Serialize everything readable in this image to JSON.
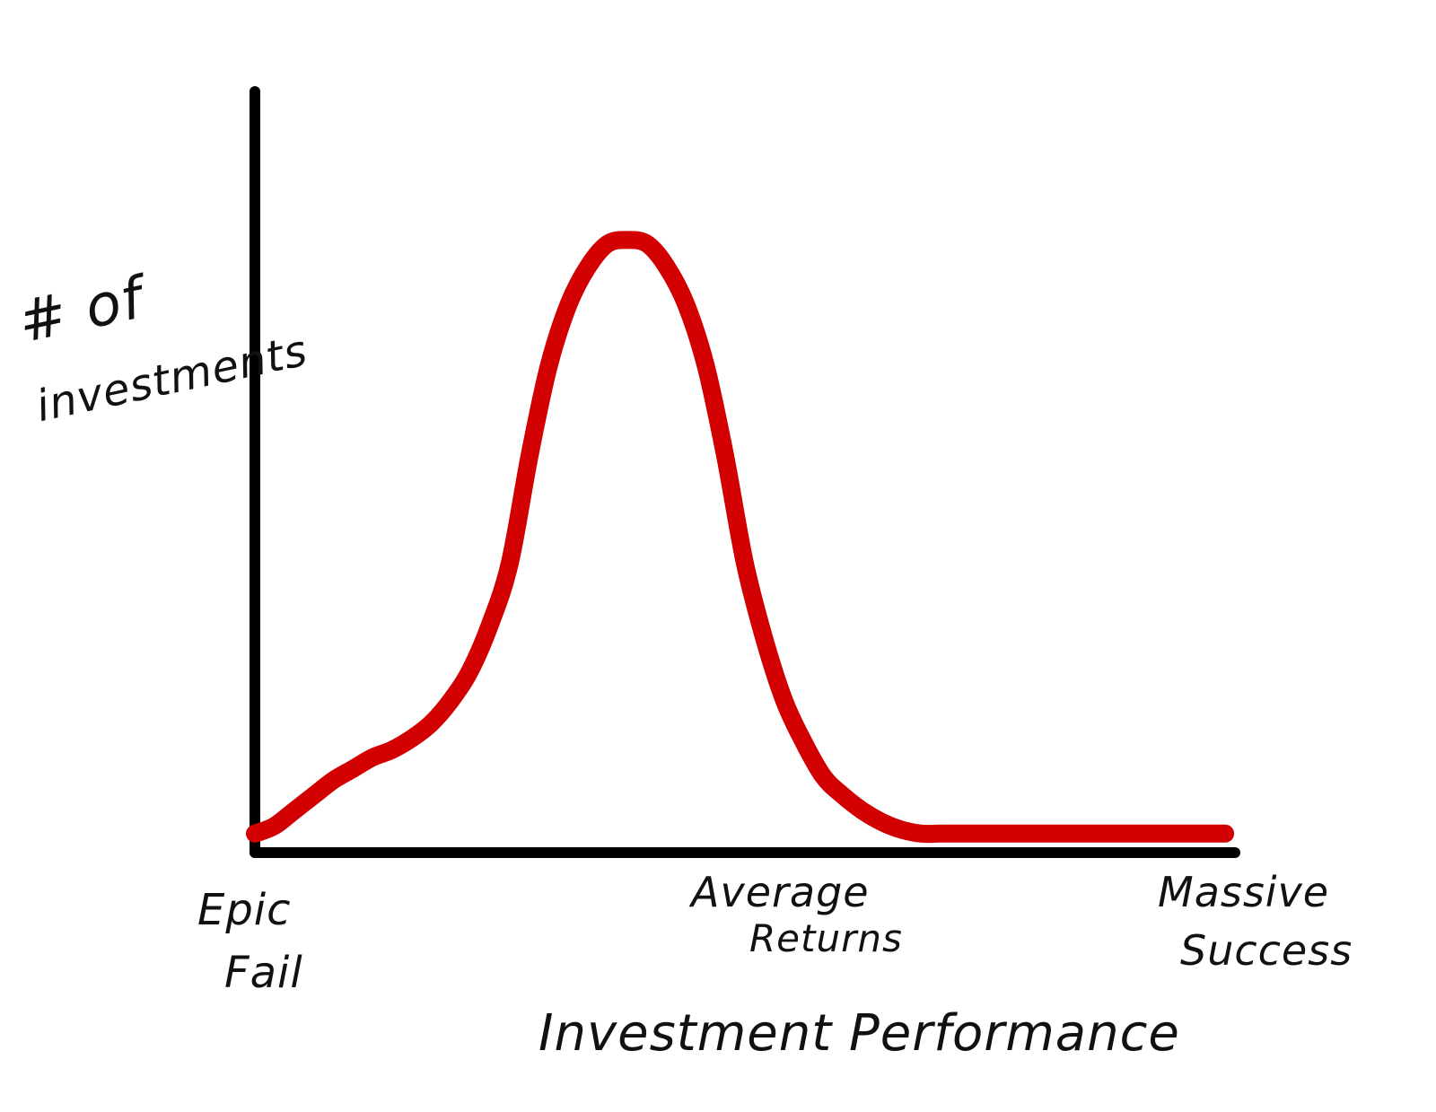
{
  "chart_data": {
    "type": "line",
    "title": "",
    "xlabel": "Investment Performance",
    "ylabel_line1": "# of",
    "ylabel_line2": "investments",
    "x_tick_labels": [
      {
        "line1": "Epic",
        "line2": "Fail"
      },
      {
        "line1": "Average",
        "line2": "Returns"
      },
      {
        "line1": "Massive",
        "line2": "Success"
      }
    ],
    "xlim": [
      0,
      100
    ],
    "ylim": [
      0,
      100
    ],
    "grid": false,
    "legend": "none",
    "series": [
      {
        "color": "#d20000",
        "x": [
          0,
          2,
          4,
          6,
          8,
          10,
          12,
          14,
          16,
          18,
          20,
          22,
          24,
          26,
          28,
          30,
          32,
          34,
          36,
          38,
          40,
          42,
          44,
          46,
          48,
          50,
          52,
          54,
          56,
          58,
          60,
          62,
          64,
          66,
          68,
          70,
          72,
          74,
          76,
          78,
          80,
          82,
          84,
          86,
          88,
          90,
          92,
          94,
          96,
          98,
          99
        ],
        "y": [
          2.5,
          3.5,
          5.5,
          7.5,
          9.5,
          11,
          12.5,
          13.5,
          15,
          17,
          20,
          24,
          30,
          38,
          52,
          64,
          72,
          77,
          80,
          80.5,
          80,
          77,
          72,
          64,
          52,
          38,
          28,
          20,
          14.5,
          10,
          7.5,
          5.5,
          4,
          3,
          2.5,
          2.5,
          2.5,
          2.5,
          2.5,
          2.5,
          2.5,
          2.5,
          2.5,
          2.5,
          2.5,
          2.5,
          2.5,
          2.5,
          2.5,
          2.5,
          2.5
        ]
      }
    ]
  }
}
